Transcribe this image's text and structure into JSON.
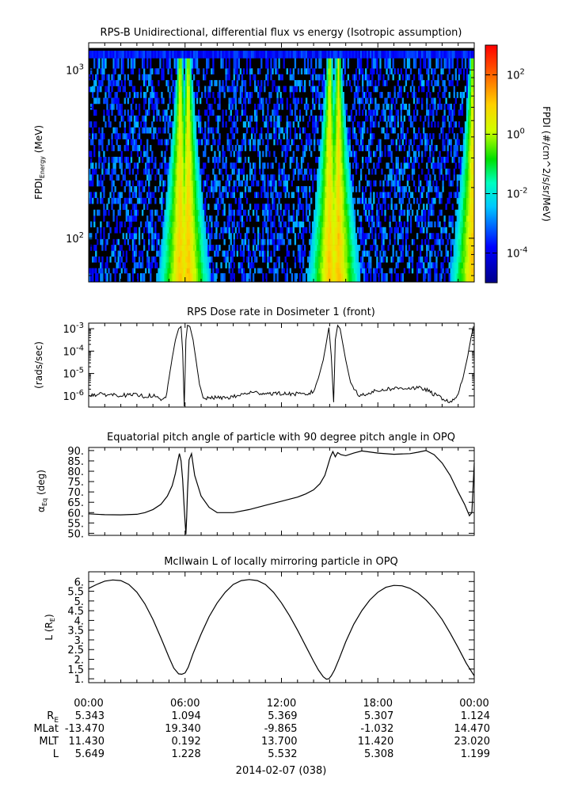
{
  "chart_data": [
    {
      "type": "heatmap",
      "title": "RPS-B  Unidirectional, differential flux vs energy (Isotropic assumption)",
      "ylabel": "FPDI",
      "ylabel_sub": "Energy",
      "ylabel_unit": "(MeV)",
      "yscale": "log",
      "ylim": [
        55,
        1450
      ],
      "yticks": [
        {
          "value": 100,
          "base": "10",
          "exp": "2"
        },
        {
          "value": 1000,
          "base": "10",
          "exp": "3"
        }
      ],
      "x_hours": [
        0,
        24
      ],
      "energy_bins": [
        60,
        64,
        69,
        75,
        81,
        88,
        95,
        103,
        112,
        121,
        131,
        142,
        154,
        167,
        181,
        196,
        212,
        230,
        249,
        270,
        293,
        317,
        344,
        373,
        404,
        438,
        475,
        515,
        558,
        605,
        656,
        711,
        771,
        836,
        906,
        982,
        1064,
        1300
      ],
      "flux_peaks_hours": [
        5.7,
        6.2,
        15.0,
        15.55,
        23.9
      ],
      "colorbar": {
        "label": "FPDI (#/cm^2/s/sr/MeV)",
        "scale": "log",
        "range": [
          -5,
          3
        ],
        "ticks": [
          {
            "exp": "2",
            "value": 2
          },
          {
            "exp": "0",
            "value": 0
          },
          {
            "exp": "-2",
            "value": -2
          },
          {
            "exp": "-4",
            "value": -4
          }
        ]
      }
    },
    {
      "type": "line",
      "title": "RPS  Dose rate in Dosimeter 1 (front)",
      "ylabel": "(rads/sec)",
      "yscale": "log",
      "ylim": [
        -6.5,
        -2.75
      ],
      "yticks": [
        {
          "exp": "-3",
          "value": -3
        },
        {
          "exp": "-4",
          "value": -4
        },
        {
          "exp": "-5",
          "value": -5
        },
        {
          "exp": "-6",
          "value": -6
        }
      ],
      "x": [
        0,
        0.5,
        1.0,
        1.5,
        2.0,
        2.5,
        3.0,
        3.5,
        4.0,
        4.5,
        4.8,
        5.0,
        5.2,
        5.4,
        5.6,
        5.75,
        5.85,
        5.95,
        6.05,
        6.15,
        6.3,
        6.5,
        6.7,
        6.9,
        7.2,
        7.6,
        8.0,
        9.0,
        10.0,
        11.0,
        12.0,
        13.0,
        13.5,
        14.0,
        14.3,
        14.6,
        14.8,
        14.95,
        15.1,
        15.25,
        15.35,
        15.5,
        15.65,
        15.8,
        16.0,
        16.3,
        16.8,
        17.5,
        18.5,
        19.5,
        20.5,
        21.0,
        21.4,
        22.0,
        22.6,
        23.0,
        23.3,
        23.6,
        23.8,
        23.95
      ],
      "values": [
        -5.95,
        -5.95,
        -5.93,
        -5.95,
        -5.96,
        -5.98,
        -5.96,
        -6.02,
        -5.98,
        -6.2,
        -6.1,
        -5.2,
        -4.3,
        -3.5,
        -3.0,
        -2.9,
        -4.0,
        -6.5,
        -3.5,
        -2.85,
        -2.9,
        -3.5,
        -4.5,
        -5.5,
        -6.2,
        -6.05,
        -6.1,
        -6.05,
        -5.85,
        -5.88,
        -5.9,
        -5.92,
        -5.95,
        -5.8,
        -5.2,
        -4.4,
        -3.6,
        -2.95,
        -4.2,
        -6.3,
        -3.5,
        -2.85,
        -3.0,
        -3.6,
        -4.4,
        -5.4,
        -6.0,
        -5.85,
        -5.7,
        -5.65,
        -5.65,
        -5.72,
        -5.9,
        -6.1,
        -6.3,
        -5.9,
        -5.2,
        -4.2,
        -3.4,
        -2.9
      ]
    },
    {
      "type": "line",
      "title": "Equatorial pitch angle of particle with 90 degree pitch angle in OPQ",
      "ylabel": "α",
      "ylabel_sub": "Eq",
      "ylabel_unit": "(deg)",
      "ylim": [
        49,
        91.5
      ],
      "yticks": [
        90,
        85,
        80,
        75,
        70,
        65,
        60,
        55,
        50
      ],
      "tick_labels": [
        "90.",
        "85.",
        "80.",
        "75.",
        "70.",
        "65.",
        "60.",
        "55.",
        "50."
      ],
      "x": [
        0,
        1,
        2,
        3,
        3.5,
        4.0,
        4.5,
        4.9,
        5.2,
        5.4,
        5.55,
        5.65,
        5.75,
        5.85,
        5.95,
        6.05,
        6.1,
        6.15,
        6.25,
        6.4,
        6.6,
        7.0,
        7.5,
        8.0,
        9.0,
        10.0,
        11.0,
        12.0,
        12.5,
        13.0,
        13.5,
        14.0,
        14.4,
        14.7,
        14.9,
        15.05,
        15.2,
        15.35,
        15.5,
        15.7,
        16.0,
        16.5,
        17.0,
        18.0,
        19.0,
        20.0,
        20.5,
        21.0,
        21.5,
        22.0,
        22.5,
        23.0,
        23.4,
        23.7,
        23.85,
        24.0
      ],
      "values": [
        59.4,
        59.0,
        58.9,
        59.2,
        60.0,
        61.5,
        64.0,
        68.0,
        73.0,
        79.0,
        85.0,
        88.5,
        85.0,
        76.0,
        62.0,
        49.5,
        58.0,
        70.0,
        85.5,
        88.5,
        78.0,
        68.0,
        62.5,
        60.0,
        60.0,
        61.5,
        63.5,
        65.5,
        66.5,
        67.5,
        69.0,
        71.0,
        74.0,
        78.0,
        83.0,
        87.0,
        89.5,
        87.0,
        89.0,
        88.0,
        87.5,
        88.8,
        89.8,
        88.8,
        88.2,
        88.5,
        89.2,
        90.0,
        88.0,
        84.0,
        78.0,
        70.0,
        64.0,
        58.5,
        60.0,
        84.0
      ]
    },
    {
      "type": "line",
      "title": "McIlwain L of locally mirroring particle in OPQ",
      "ylabel": "L (R",
      "ylabel_sub": "E",
      "ylabel_unit": ")",
      "ylim": [
        0.8,
        6.5
      ],
      "yticks": [
        6,
        5.5,
        5,
        4.5,
        4,
        3.5,
        3,
        2.5,
        2,
        1.5,
        1
      ],
      "tick_labels": [
        "6.",
        "5.5",
        "5.",
        "4.5",
        "4.",
        "3.5",
        "3.",
        "2.5",
        "2.",
        "1.5",
        "1."
      ],
      "x": [
        0,
        0.5,
        1.0,
        1.5,
        2.0,
        2.5,
        3.0,
        3.5,
        4.0,
        4.5,
        5.0,
        5.3,
        5.6,
        5.8,
        6.0,
        6.2,
        6.5,
        7.0,
        7.5,
        8.0,
        8.5,
        9.0,
        9.5,
        10.0,
        10.5,
        11.0,
        11.5,
        12.0,
        12.5,
        13.0,
        13.5,
        14.0,
        14.3,
        14.6,
        14.8,
        14.95,
        15.1,
        15.3,
        15.6,
        16.0,
        16.5,
        17.0,
        17.5,
        18.0,
        18.5,
        19.0,
        19.5,
        20.0,
        20.5,
        21.0,
        21.5,
        22.0,
        22.5,
        23.0,
        23.5,
        24.0
      ],
      "values": [
        5.65,
        5.85,
        6.02,
        6.08,
        6.05,
        5.85,
        5.45,
        4.85,
        4.05,
        3.1,
        2.1,
        1.55,
        1.25,
        1.23,
        1.3,
        1.6,
        2.3,
        3.3,
        4.2,
        4.9,
        5.45,
        5.85,
        6.05,
        6.1,
        6.05,
        5.85,
        5.45,
        4.9,
        4.25,
        3.5,
        2.7,
        1.9,
        1.45,
        1.1,
        0.98,
        1.0,
        1.15,
        1.45,
        2.05,
        2.9,
        3.8,
        4.5,
        5.05,
        5.45,
        5.7,
        5.8,
        5.78,
        5.65,
        5.4,
        5.05,
        4.6,
        4.05,
        3.35,
        2.6,
        1.8,
        1.15
      ]
    }
  ],
  "x_axis": {
    "tick_labels": [
      "00:00",
      "06:00",
      "12:00",
      "18:00",
      "00:00"
    ],
    "date_label": "2014-02-07 (038)"
  },
  "ephemeris": {
    "rows": [
      {
        "label": "R",
        "label_sub": "E",
        "values": [
          "5.343",
          "1.094",
          "5.369",
          "5.307",
          "1.124"
        ]
      },
      {
        "label": "MLat",
        "label_sub": "",
        "values": [
          "-13.470",
          "19.340",
          "-9.865",
          "-1.032",
          "14.470"
        ]
      },
      {
        "label": "MLT",
        "label_sub": "",
        "values": [
          "11.430",
          "0.192",
          "13.700",
          "11.420",
          "23.020"
        ]
      },
      {
        "label": "L",
        "label_sub": "",
        "values": [
          "5.649",
          "1.228",
          "5.532",
          "5.308",
          "1.199"
        ]
      }
    ]
  }
}
